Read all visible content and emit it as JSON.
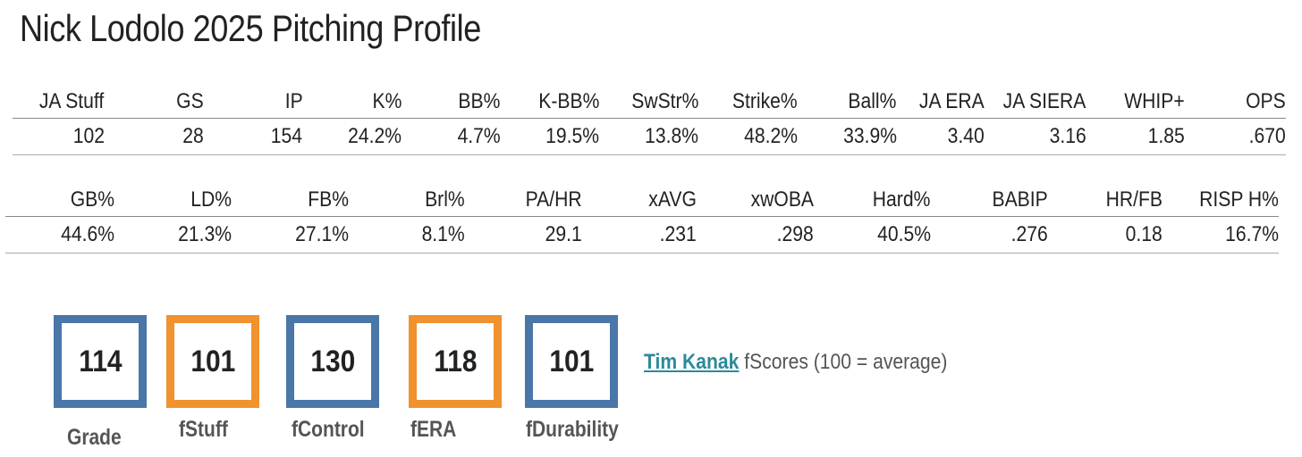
{
  "title": "Nick Lodolo 2025 Pitching Profile",
  "table1": {
    "headers": [
      "JA Stuff",
      "GS",
      "IP",
      "K%",
      "BB%",
      "K-BB%",
      "SwStr%",
      "Strike%",
      "Ball%",
      "JA ERA",
      "JA SIERA",
      "WHIP+",
      "OPS"
    ],
    "values": [
      "102",
      "28",
      "154",
      "24.2%",
      "4.7%",
      "19.5%",
      "13.8%",
      "48.2%",
      "33.9%",
      "3.40",
      "3.16",
      "1.85",
      ".670"
    ]
  },
  "table2": {
    "headers": [
      "GB%",
      "LD%",
      "FB%",
      "Brl%",
      "PA/HR",
      "xAVG",
      "xwOBA",
      "Hard%",
      "BABIP",
      "HR/FB",
      "RISP H%"
    ],
    "values": [
      "44.6%",
      "21.3%",
      "27.1%",
      "8.1%",
      "29.1",
      ".231",
      ".298",
      "40.5%",
      ".276",
      "0.18",
      "16.7%"
    ]
  },
  "fscores": [
    {
      "label": "Grade",
      "value": "114",
      "color": "#4a76a8"
    },
    {
      "label": "fStuff",
      "value": "101",
      "color": "#f0922e"
    },
    {
      "label": "fControl",
      "value": "130",
      "color": "#4a76a8"
    },
    {
      "label": "fERA",
      "value": "118",
      "color": "#f0922e"
    },
    {
      "label": "fDurability",
      "value": "101",
      "color": "#4a76a8"
    }
  ],
  "note": {
    "link_text": "Tim Kanak",
    "text": " fScores (100 = average)"
  }
}
